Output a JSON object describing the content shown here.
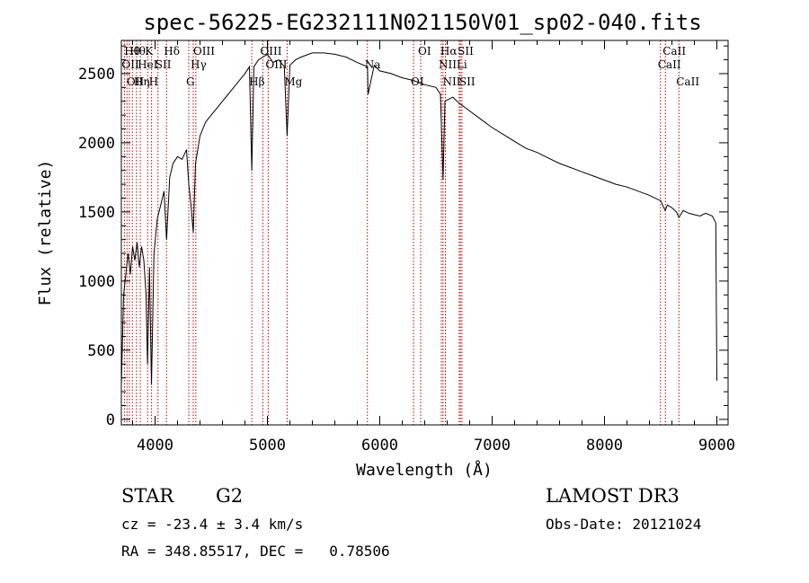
{
  "chart_data": {
    "type": "line",
    "title": "spec-56225-EG232111N021150V01_sp02-040.fits",
    "xlabel": "Wavelength (Å)",
    "ylabel": "Flux (relative)",
    "xlim": [
      3700,
      9100
    ],
    "ylim": [
      -40,
      2740
    ],
    "xticks": [
      4000,
      5000,
      6000,
      7000,
      8000,
      9000
    ],
    "yticks": [
      0,
      500,
      1000,
      1500,
      2000,
      2500
    ],
    "xtick_labels": [
      "4000",
      "5000",
      "6000",
      "7000",
      "8000",
      "9000"
    ],
    "ytick_labels": [
      "0",
      "500",
      "1000",
      "1500",
      "2000",
      "2500"
    ],
    "series": [
      {
        "name": "flux",
        "points": [
          [
            3700,
            250
          ],
          [
            3720,
            900
          ],
          [
            3740,
            1050
          ],
          [
            3760,
            1200
          ],
          [
            3780,
            1050
          ],
          [
            3800,
            1250
          ],
          [
            3820,
            1150
          ],
          [
            3840,
            1280
          ],
          [
            3860,
            1100
          ],
          [
            3880,
            1250
          ],
          [
            3900,
            1150
          ],
          [
            3920,
            900
          ],
          [
            3933,
            400
          ],
          [
            3950,
            1100
          ],
          [
            3968,
            250
          ],
          [
            3990,
            1200
          ],
          [
            4020,
            1450
          ],
          [
            4050,
            1550
          ],
          [
            4080,
            1650
          ],
          [
            4102,
            1300
          ],
          [
            4130,
            1750
          ],
          [
            4160,
            1850
          ],
          [
            4200,
            1900
          ],
          [
            4240,
            1880
          ],
          [
            4280,
            1950
          ],
          [
            4300,
            1700
          ],
          [
            4320,
            1550
          ],
          [
            4340,
            1350
          ],
          [
            4360,
            1850
          ],
          [
            4400,
            2050
          ],
          [
            4450,
            2150
          ],
          [
            4500,
            2200
          ],
          [
            4550,
            2250
          ],
          [
            4600,
            2300
          ],
          [
            4650,
            2350
          ],
          [
            4700,
            2400
          ],
          [
            4750,
            2450
          ],
          [
            4800,
            2500
          ],
          [
            4840,
            2550
          ],
          [
            4861,
            1800
          ],
          [
            4880,
            2550
          ],
          [
            4920,
            2600
          ],
          [
            4960,
            2620
          ],
          [
            5000,
            2640
          ],
          [
            5050,
            2580
          ],
          [
            5100,
            2600
          ],
          [
            5150,
            2550
          ],
          [
            5175,
            2050
          ],
          [
            5200,
            2560
          ],
          [
            5250,
            2600
          ],
          [
            5300,
            2620
          ],
          [
            5400,
            2650
          ],
          [
            5500,
            2650
          ],
          [
            5600,
            2640
          ],
          [
            5700,
            2620
          ],
          [
            5800,
            2580
          ],
          [
            5890,
            2550
          ],
          [
            5896,
            2350
          ],
          [
            5950,
            2560
          ],
          [
            6000,
            2520
          ],
          [
            6100,
            2500
          ],
          [
            6200,
            2470
          ],
          [
            6300,
            2450
          ],
          [
            6400,
            2420
          ],
          [
            6500,
            2400
          ],
          [
            6540,
            2350
          ],
          [
            6563,
            1730
          ],
          [
            6580,
            2300
          ],
          [
            6650,
            2330
          ],
          [
            6700,
            2290
          ],
          [
            6800,
            2230
          ],
          [
            6900,
            2170
          ],
          [
            7000,
            2110
          ],
          [
            7100,
            2060
          ],
          [
            7200,
            2010
          ],
          [
            7300,
            1960
          ],
          [
            7400,
            1930
          ],
          [
            7500,
            1890
          ],
          [
            7600,
            1850
          ],
          [
            7700,
            1820
          ],
          [
            7800,
            1790
          ],
          [
            7900,
            1760
          ],
          [
            8000,
            1730
          ],
          [
            8100,
            1700
          ],
          [
            8200,
            1680
          ],
          [
            8300,
            1650
          ],
          [
            8400,
            1620
          ],
          [
            8500,
            1580
          ],
          [
            8540,
            1510
          ],
          [
            8560,
            1550
          ],
          [
            8600,
            1530
          ],
          [
            8640,
            1500
          ],
          [
            8662,
            1460
          ],
          [
            8700,
            1510
          ],
          [
            8750,
            1490
          ],
          [
            8800,
            1480
          ],
          [
            8850,
            1470
          ],
          [
            8900,
            1490
          ],
          [
            8960,
            1470
          ],
          [
            8990,
            1420
          ],
          [
            9000,
            280
          ]
        ]
      }
    ],
    "line_markers": [
      {
        "wavelength": 3727,
        "label": "OII",
        "row": 2
      },
      {
        "wavelength": 3750,
        "label": "Hθ",
        "row": 1
      },
      {
        "wavelength": 3771,
        "label": "OII",
        "row": 3
      },
      {
        "wavelength": 3798,
        "label": "Hθ",
        "row": 1
      },
      {
        "wavelength": 3835,
        "label": "Hη",
        "row": 3
      },
      {
        "wavelength": 3869,
        "label": "HeI",
        "row": 2
      },
      {
        "wavelength": 3934,
        "label": "K",
        "row": 1
      },
      {
        "wavelength": 3969,
        "label": "H",
        "row": 3
      },
      {
        "wavelength": 4026,
        "label": "SII",
        "row": 2
      },
      {
        "wavelength": 4102,
        "label": "Hδ",
        "row": 1
      },
      {
        "wavelength": 4300,
        "label": "G",
        "row": 3
      },
      {
        "wavelength": 4340,
        "label": "Hγ",
        "row": 2
      },
      {
        "wavelength": 4363,
        "label": "OIII",
        "row": 1
      },
      {
        "wavelength": 4861,
        "label": "Hβ",
        "row": 3
      },
      {
        "wavelength": 4959,
        "label": "OIII",
        "row": 1
      },
      {
        "wavelength": 5007,
        "label": "OIII",
        "row": 2
      },
      {
        "wavelength": 5175,
        "label": "Mg",
        "row": 3
      },
      {
        "wavelength": 5890,
        "label": "Na",
        "row": 2
      },
      {
        "wavelength": 6300,
        "label": "OI",
        "row": 3
      },
      {
        "wavelength": 6364,
        "label": "OI",
        "row": 1
      },
      {
        "wavelength": 6548,
        "label": "NII",
        "row": 2
      },
      {
        "wavelength": 6563,
        "label": "Hα",
        "row": 1
      },
      {
        "wavelength": 6584,
        "label": "NII",
        "row": 3
      },
      {
        "wavelength": 6707,
        "label": "Li",
        "row": 2
      },
      {
        "wavelength": 6717,
        "label": "SII",
        "row": 1
      },
      {
        "wavelength": 6731,
        "label": "SII",
        "row": 3
      },
      {
        "wavelength": 8498,
        "label": "CaII",
        "row": 2
      },
      {
        "wavelength": 8542,
        "label": "CaII",
        "row": 1
      },
      {
        "wavelength": 8662,
        "label": "CaII",
        "row": 3
      }
    ],
    "annotations": {
      "object_class": "STAR",
      "subclass": "G2",
      "survey": "LAMOST DR3",
      "redshift": "cz = -23.4 ± 3.4 km/s",
      "obs_date": "Obs-Date: 20121024",
      "coords": "RA = 348.85517, DEC =   0.78506"
    }
  },
  "colors": {
    "spectrum": "#000000",
    "line_markers": "#c00000",
    "axes": "#000000",
    "background": "#ffffff"
  }
}
